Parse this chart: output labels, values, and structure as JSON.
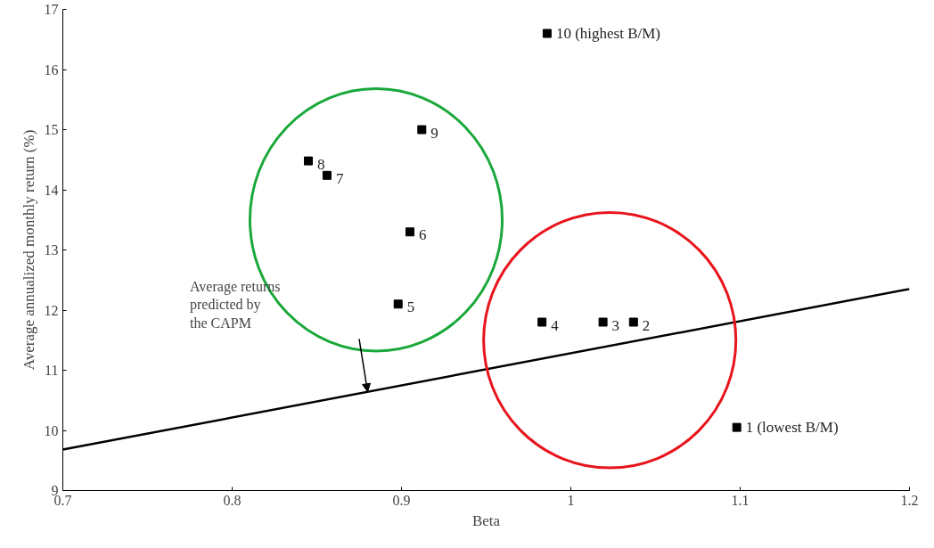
{
  "chart_data": {
    "type": "scatter",
    "xlabel": "Beta",
    "ylabel": "Average annualized monthly return (%)",
    "xlim": [
      0.7,
      1.2
    ],
    "ylim": [
      9,
      17
    ],
    "xticks": [
      0.7,
      0.8,
      0.9,
      1,
      1.1,
      1.2
    ],
    "yticks": [
      9,
      10,
      11,
      12,
      13,
      14,
      15,
      16,
      17
    ],
    "grid": false,
    "series": [
      {
        "color": "#000000",
        "marker": "square",
        "x": [
          1.098,
          1.037,
          1.019,
          0.983,
          0.898,
          0.905,
          0.856,
          0.845,
          0.912,
          0.986
        ],
        "values": [
          10.05,
          11.8,
          11.8,
          11.8,
          12.1,
          13.3,
          14.24,
          14.48,
          15.0,
          16.6
        ]
      },
      {
        "type": "line",
        "color": "#000000",
        "x": [
          0.7,
          1.2
        ],
        "values": [
          9.68,
          12.35
        ]
      }
    ],
    "annotations": [
      "Average returns predicted by the CAPM",
      {
        "text": "1 (lowest B/M)",
        "x": 1.098,
        "y": 10.05
      },
      {
        "text": "2",
        "x": 1.037,
        "y": 11.8
      },
      {
        "text": "3",
        "x": 1.019,
        "y": 11.8
      },
      {
        "text": "4",
        "x": 0.983,
        "y": 11.8
      },
      {
        "text": "5",
        "x": 0.898,
        "y": 12.1
      },
      {
        "text": "6",
        "x": 0.905,
        "y": 13.3
      },
      {
        "text": "7",
        "x": 0.856,
        "y": 14.24
      },
      {
        "text": "8",
        "x": 0.845,
        "y": 14.48
      },
      {
        "text": "9",
        "x": 0.912,
        "y": 15.0
      },
      {
        "text": "10 (highest B/M)",
        "x": 0.986,
        "y": 16.6
      }
    ]
  }
}
